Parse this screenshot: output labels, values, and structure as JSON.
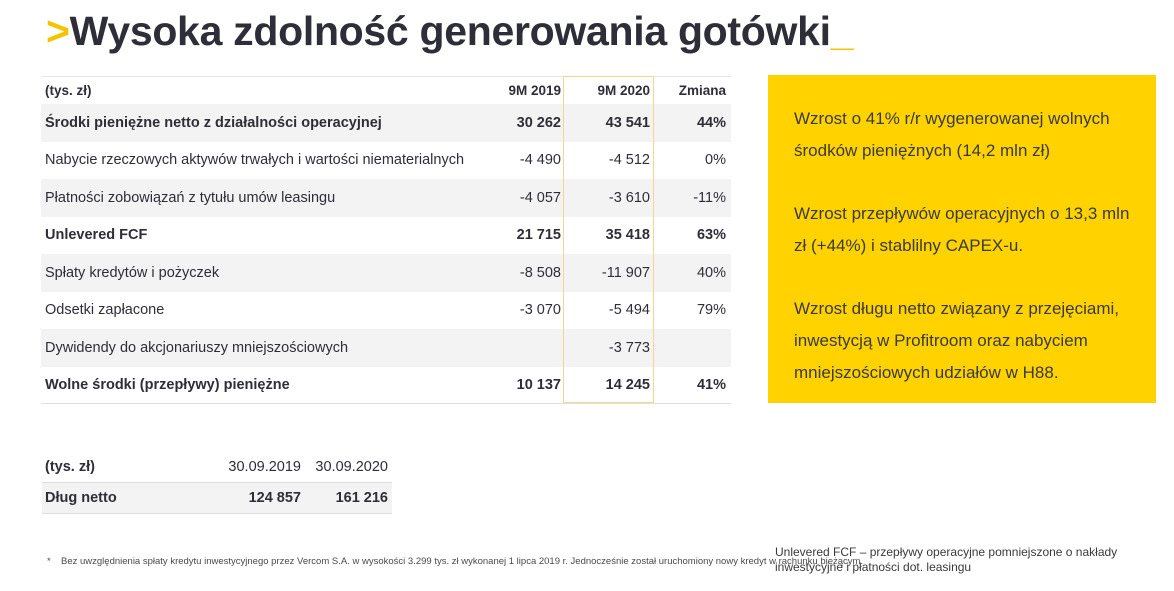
{
  "title": {
    "prefix": ">",
    "text": "Wysoka zdolność generowania gotówki",
    "suffix": "_"
  },
  "main_table": {
    "headers": {
      "label": "(tys. zł)",
      "col1": "9M 2019",
      "col2": "9M 2020",
      "col3": "Zmiana"
    },
    "rows": [
      {
        "label": "Środki pieniężne netto z działalności operacyjnej",
        "col1": "30 262",
        "col2": "43 541",
        "col3": "44%"
      },
      {
        "label": "Nabycie rzeczowych aktywów trwałych i wartości niematerialnych",
        "col1": "-4 490",
        "col2": "-4 512",
        "col3": "0%"
      },
      {
        "label": "Płatności zobowiązań z tytułu umów leasingu",
        "col1": "-4 057",
        "col2": "-3 610",
        "col3": "-11%"
      },
      {
        "label": "Unlevered FCF",
        "col1": "21 715",
        "col2": "35 418",
        "col3": "63%"
      },
      {
        "label": "Spłaty kredytów i pożyczek",
        "col1": "-8 508",
        "col2": "-11 907",
        "col3": "40%"
      },
      {
        "label": "Odsetki zapłacone",
        "col1": "-3 070",
        "col2": "-5 494",
        "col3": "79%"
      },
      {
        "label": "Dywidendy do akcjonariuszy mniejszościowych",
        "col1": "",
        "col2": "-3 773",
        "col3": ""
      },
      {
        "label": "Wolne środki (przepływy) pieniężne",
        "col1": "10 137",
        "col2": "14 245",
        "col3": "41%"
      }
    ]
  },
  "callout": {
    "items": [
      "Wzrost o 41% r/r wygenerowanej wolnych środków pieniężnych (14,2 mln zł)",
      "Wzrost przepływów operacyjnych o 13,3 mln zł (+44%) i stablilny CAPEX-u.",
      "Wzrost długu netto związany z przejęciami, inwestycją w Profitroom oraz nabyciem mniejszościowych udziałów w H88."
    ]
  },
  "debt_table": {
    "headers": {
      "label": "(tys. zł)",
      "col1": "30.09.2019",
      "col2": "30.09.2020"
    },
    "row": {
      "label": "Dług netto",
      "col1": "124 857",
      "col2": "161 216"
    }
  },
  "footnote": {
    "marker": "*",
    "text": "Bez uwzględnienia spłaty kredytu inwestycyjnego przez Vercom S.A. w wysokości 3.299 tys. zł wykonanej 1 lipca 2019 r. Jednocześnie został uruchomiony nowy kredyt w rachunku bieżącym."
  },
  "definition_note": "Unlevered FCF – przepływy operacyjne pomniejszone o nakłady inwestycyjne i płatności dot. leasingu",
  "colors": {
    "accent": "#ffd200",
    "text": "#2e2e38"
  }
}
